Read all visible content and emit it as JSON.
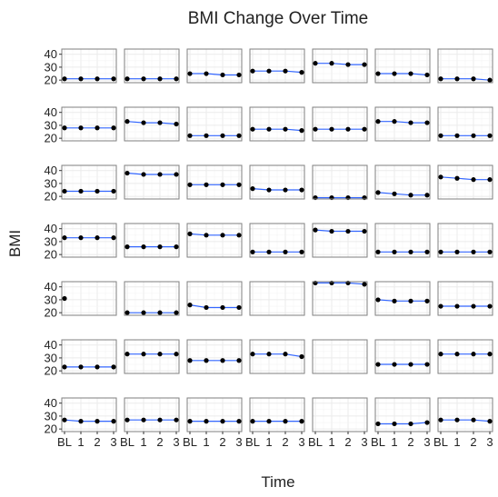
{
  "chart_data": {
    "type": "line",
    "title": "BMI Change Over Time",
    "xlabel": "Time",
    "ylabel": "BMI",
    "categories": [
      "BL",
      "1",
      "2",
      "3"
    ],
    "ylim": [
      18,
      44
    ],
    "y_ticks": [
      20,
      30,
      40
    ],
    "grid": true,
    "layout": {
      "rows": 7,
      "cols": 7
    },
    "colors": {
      "line": "#3366ff",
      "point": "#000000",
      "panel_border": "#7f7f7f",
      "grid": "#ebebeb"
    },
    "panels": [
      [
        21,
        21,
        21,
        21
      ],
      [
        21,
        21,
        21,
        21
      ],
      [
        25,
        25,
        24,
        24
      ],
      [
        27,
        27,
        27,
        26
      ],
      [
        33,
        33,
        32,
        32
      ],
      [
        25,
        25,
        25,
        24
      ],
      [
        21,
        21,
        21,
        20
      ],
      [
        28,
        28,
        28,
        28
      ],
      [
        33,
        32,
        32,
        31
      ],
      [
        22,
        22,
        22,
        22
      ],
      [
        27,
        27,
        27,
        26
      ],
      [
        27,
        27,
        27,
        27
      ],
      [
        33,
        33,
        32,
        32
      ],
      [
        22,
        22,
        22,
        22
      ],
      [
        24,
        24,
        24,
        24
      ],
      [
        38,
        37,
        37,
        37
      ],
      [
        29,
        29,
        29,
        29
      ],
      [
        26,
        25,
        25,
        25
      ],
      [
        19,
        19,
        19,
        19
      ],
      [
        23,
        22,
        21,
        21
      ],
      [
        35,
        34,
        33,
        33
      ],
      [
        33,
        33,
        33,
        33
      ],
      [
        26,
        26,
        26,
        26
      ],
      [
        36,
        35,
        35,
        35
      ],
      [
        22,
        22,
        22,
        22
      ],
      [
        39,
        38,
        38,
        38
      ],
      [
        22,
        22,
        22,
        22
      ],
      [
        22,
        22,
        22,
        22
      ],
      [
        31,
        null,
        null,
        null
      ],
      [
        20,
        20,
        20,
        20
      ],
      [
        26,
        24,
        24,
        24
      ],
      [
        null,
        null,
        null,
        null
      ],
      [
        43,
        43,
        43,
        42
      ],
      [
        30,
        29,
        29,
        29
      ],
      [
        25,
        25,
        25,
        25
      ],
      [
        23,
        23,
        23,
        23
      ],
      [
        33,
        33,
        33,
        33
      ],
      [
        28,
        28,
        28,
        28
      ],
      [
        33,
        33,
        33,
        31
      ],
      [
        null,
        null,
        null,
        null
      ],
      [
        25,
        25,
        25,
        25
      ],
      [
        33,
        33,
        33,
        33
      ],
      [
        27,
        26,
        26,
        26
      ],
      [
        27,
        27,
        27,
        27
      ],
      [
        26,
        26,
        26,
        26
      ],
      [
        26,
        26,
        26,
        26
      ],
      [
        null,
        null,
        null,
        null
      ],
      [
        24,
        24,
        24,
        25
      ],
      [
        27,
        27,
        27,
        26
      ]
    ]
  }
}
